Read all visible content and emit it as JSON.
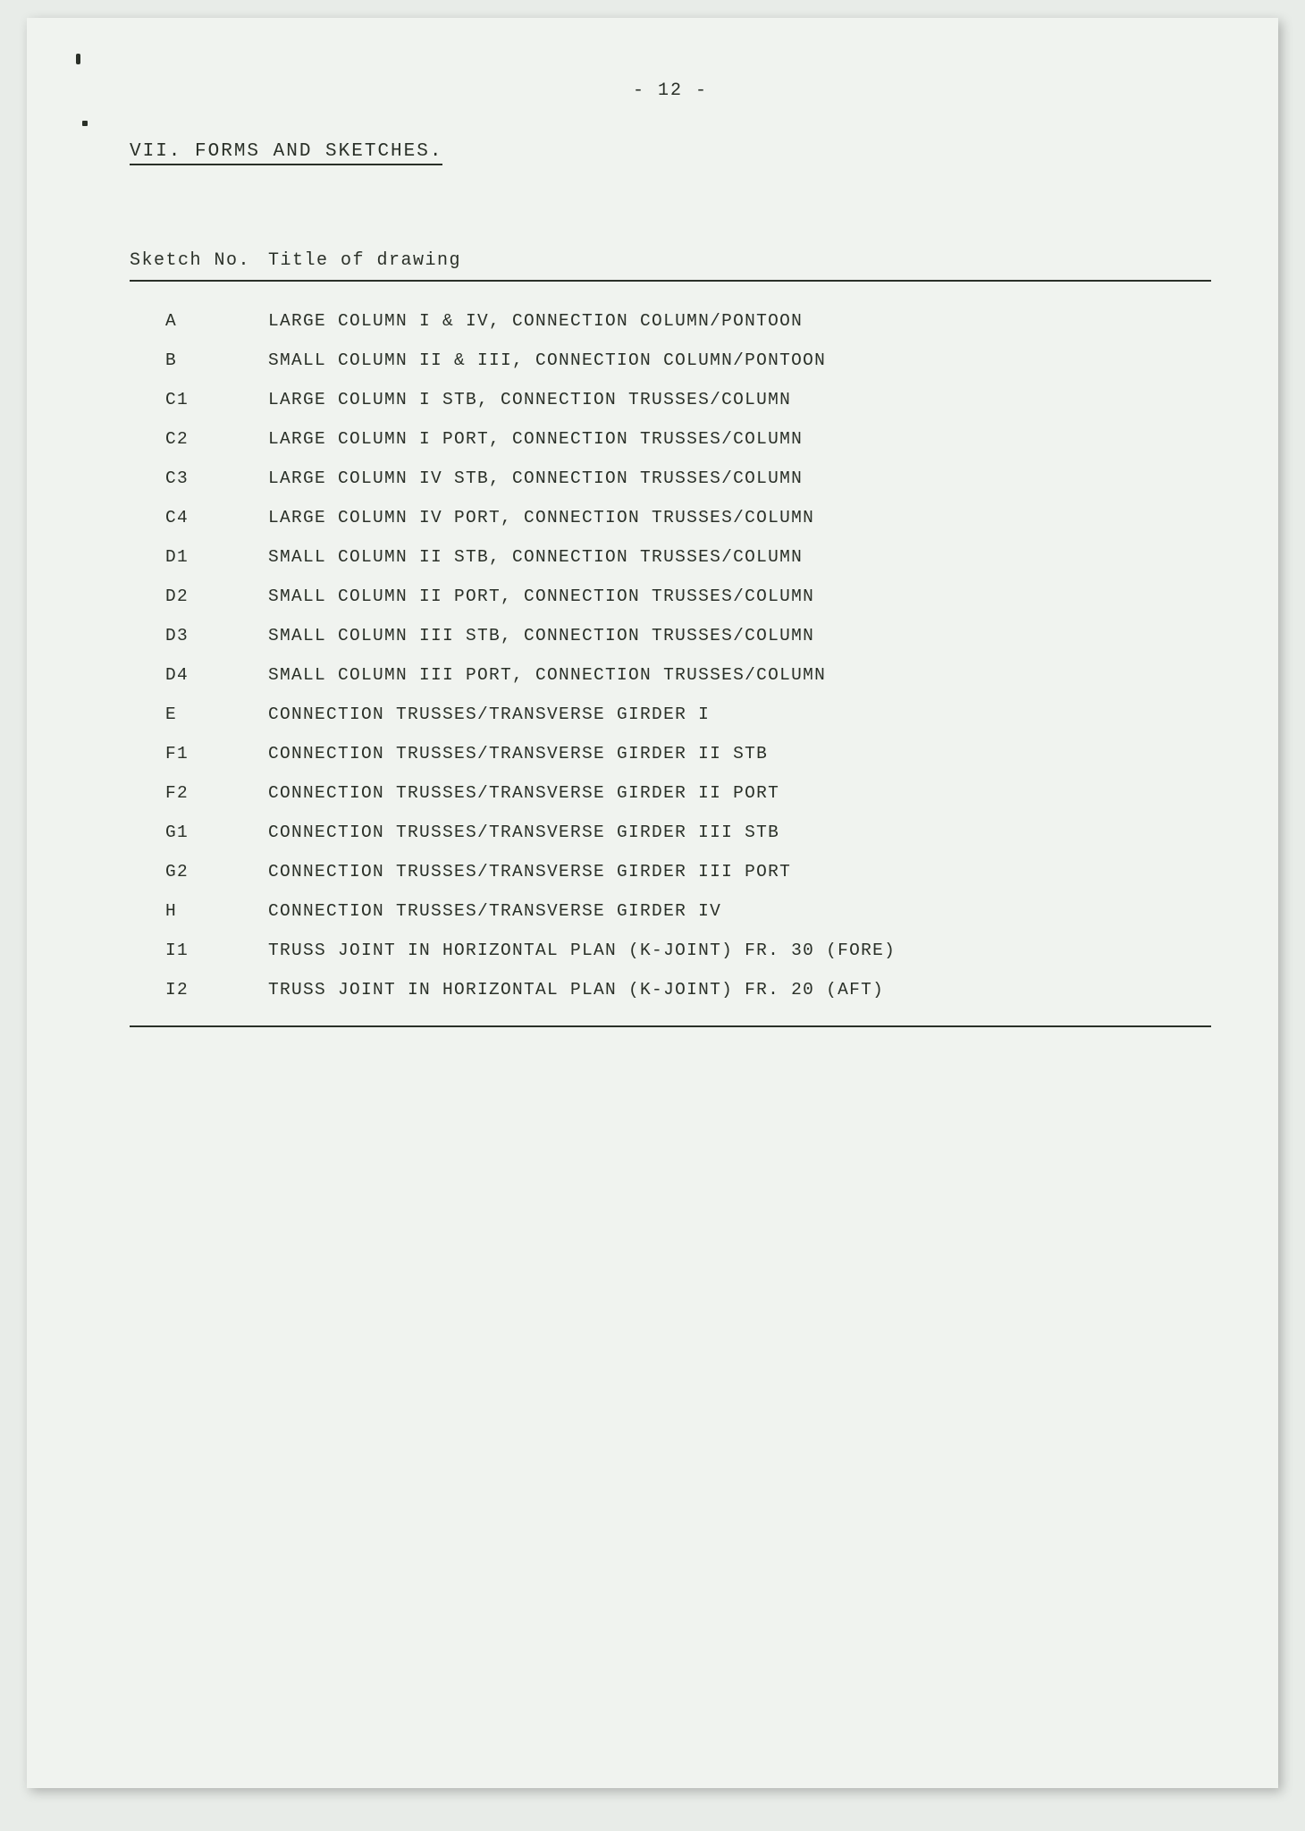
{
  "page_number": "-  12  -",
  "section_heading": "VII. FORMS AND SKETCHES.",
  "table": {
    "header": {
      "sketch_no": "Sketch No.",
      "title": "Title of drawing"
    },
    "rows": [
      {
        "sketch": "A",
        "title": "LARGE COLUMN I & IV, CONNECTION COLUMN/PONTOON"
      },
      {
        "sketch": "B",
        "title": "SMALL COLUMN II & III, CONNECTION COLUMN/PONTOON"
      },
      {
        "sketch": "C1",
        "title": "LARGE COLUMN I STB, CONNECTION TRUSSES/COLUMN"
      },
      {
        "sketch": "C2",
        "title": "LARGE COLUMN I PORT, CONNECTION TRUSSES/COLUMN"
      },
      {
        "sketch": "C3",
        "title": "LARGE COLUMN IV STB, CONNECTION TRUSSES/COLUMN"
      },
      {
        "sketch": "C4",
        "title": "LARGE COLUMN IV PORT, CONNECTION TRUSSES/COLUMN"
      },
      {
        "sketch": "D1",
        "title": "SMALL COLUMN II STB, CONNECTION TRUSSES/COLUMN"
      },
      {
        "sketch": "D2",
        "title": "SMALL COLUMN II PORT, CONNECTION TRUSSES/COLUMN"
      },
      {
        "sketch": "D3",
        "title": "SMALL COLUMN III STB, CONNECTION TRUSSES/COLUMN"
      },
      {
        "sketch": "D4",
        "title": "SMALL COLUMN III PORT, CONNECTION TRUSSES/COLUMN"
      },
      {
        "sketch": "E",
        "title": "CONNECTION TRUSSES/TRANSVERSE GIRDER I"
      },
      {
        "sketch": "F1",
        "title": "CONNECTION TRUSSES/TRANSVERSE GIRDER II STB"
      },
      {
        "sketch": "F2",
        "title": "CONNECTION TRUSSES/TRANSVERSE GIRDER II PORT"
      },
      {
        "sketch": "G1",
        "title": "CONNECTION TRUSSES/TRANSVERSE GIRDER III STB"
      },
      {
        "sketch": "G2",
        "title": "CONNECTION TRUSSES/TRANSVERSE GIRDER III PORT"
      },
      {
        "sketch": "H",
        "title": "CONNECTION TRUSSES/TRANSVERSE GIRDER IV"
      },
      {
        "sketch": "I1",
        "title": "TRUSS JOINT IN HORIZONTAL PLAN (K-JOINT) FR. 30 (FORE)"
      },
      {
        "sketch": "I2",
        "title": "TRUSS JOINT IN HORIZONTAL PLAN (K-JOINT) FR. 20 (AFT)"
      }
    ]
  }
}
